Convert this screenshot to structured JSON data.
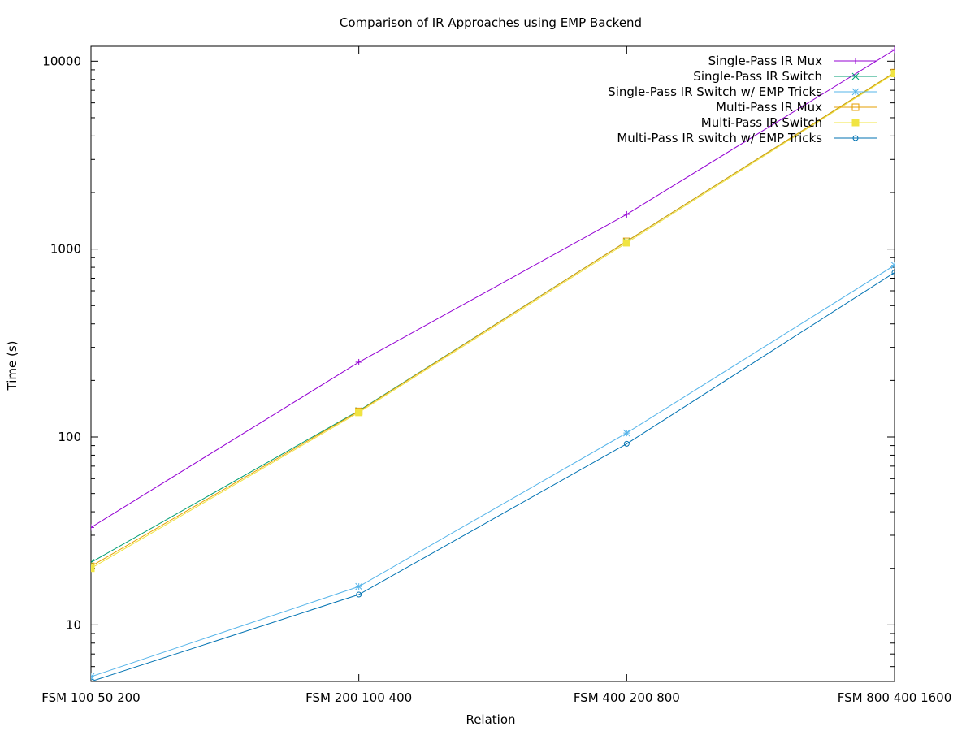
{
  "chart_data": {
    "type": "line",
    "title": "Comparison of IR Approaches using EMP Backend",
    "xlabel": "Relation",
    "ylabel": "Time (s)",
    "yscale": "log",
    "ylim": [
      5,
      12000
    ],
    "categories": [
      "FSM 100 50 200",
      "FSM 200 100 400",
      "FSM 400 200 800",
      "FSM 800 400 1600"
    ],
    "y_ticks": [
      10,
      100,
      1000,
      10000
    ],
    "y_tick_labels": [
      "10",
      "100",
      "1000",
      "10000"
    ],
    "legend_position": "top-right",
    "grid": false,
    "series": [
      {
        "name": "Single-Pass IR Mux",
        "color": "#9400d3",
        "marker": "plus",
        "values": [
          33,
          250,
          1530,
          11500
        ]
      },
      {
        "name": "Single-Pass IR Switch",
        "color": "#009e73",
        "marker": "cross",
        "values": [
          21.5,
          138,
          1100,
          8700
        ]
      },
      {
        "name": "Single-Pass IR Switch w/ EMP Tricks",
        "color": "#56b4e9",
        "marker": "star",
        "values": [
          5.3,
          16,
          105,
          820
        ]
      },
      {
        "name": "Multi-Pass IR Mux",
        "color": "#e69f00",
        "marker": "open-square",
        "values": [
          20.5,
          137,
          1100,
          8700
        ]
      },
      {
        "name": "Multi-Pass IR Switch",
        "color": "#f0e442",
        "marker": "filled-square",
        "values": [
          20,
          135,
          1080,
          8600
        ]
      },
      {
        "name": "Multi-Pass IR switch w/ EMP Tricks",
        "color": "#0072b2",
        "marker": "open-circle",
        "values": [
          5,
          14.5,
          92,
          750
        ]
      }
    ]
  }
}
